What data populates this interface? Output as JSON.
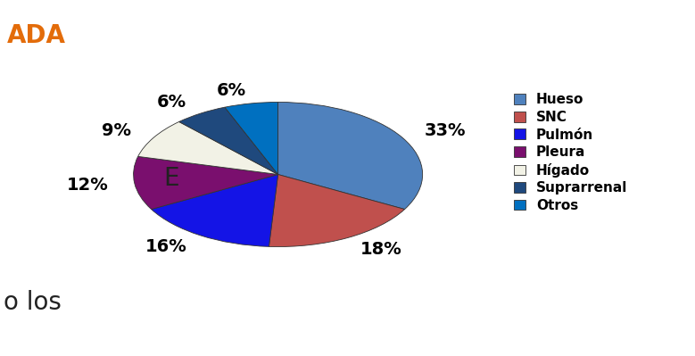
{
  "chart_data": {
    "type": "pie",
    "title": "ADA",
    "categories": [
      "Hueso",
      "SNC",
      "Pulmón",
      "Pleura",
      "Hígado",
      "Suprarrenal",
      "Otros"
    ],
    "values": [
      33,
      18,
      16,
      12,
      9,
      6,
      6
    ],
    "value_labels": [
      "33%",
      "18%",
      "16%",
      "12%",
      "9%",
      "6%",
      "6%"
    ],
    "colors": [
      "#4F81BD",
      "#C0504D",
      "#1414E6",
      "#7A0F6E",
      "#F2F2E6",
      "#1F497D",
      "#0070C0"
    ],
    "legend": "right",
    "annotations": [
      "E",
      "o los"
    ]
  }
}
